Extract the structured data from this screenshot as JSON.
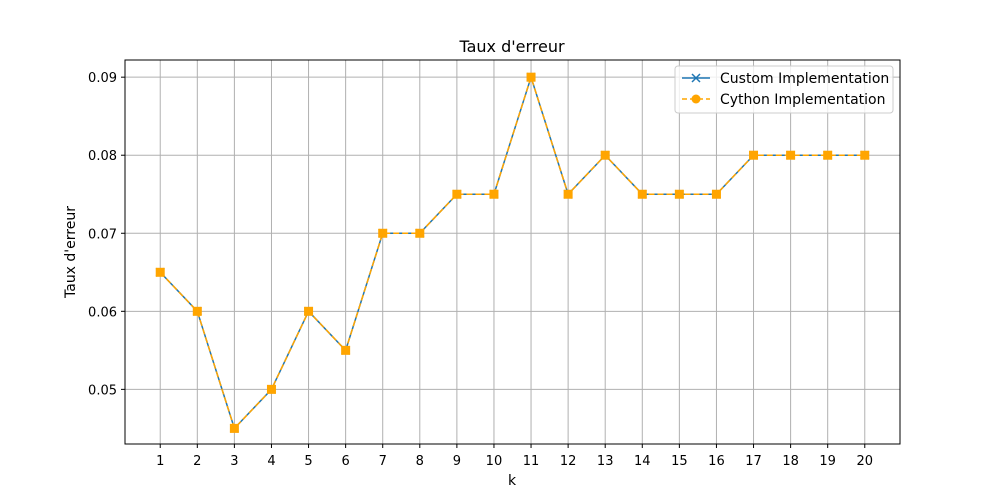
{
  "chart_data": {
    "type": "line",
    "title": "Taux d'erreur",
    "xlabel": "k",
    "ylabel": "Taux d'erreur",
    "x": [
      1,
      2,
      3,
      4,
      5,
      6,
      7,
      8,
      9,
      10,
      11,
      12,
      13,
      14,
      15,
      16,
      17,
      18,
      19,
      20
    ],
    "xlim": [
      0.05,
      20.95
    ],
    "ylim": [
      0.043,
      0.0922
    ],
    "yticks": [
      0.05,
      0.06,
      0.07,
      0.08,
      0.09
    ],
    "ytick_labels": [
      "0.05",
      "0.06",
      "0.07",
      "0.08",
      "0.09"
    ],
    "xtick_labels": [
      "1",
      "2",
      "3",
      "4",
      "5",
      "6",
      "7",
      "8",
      "9",
      "10",
      "11",
      "12",
      "13",
      "14",
      "15",
      "16",
      "17",
      "18",
      "19",
      "20"
    ],
    "grid": true,
    "legend_position": "top-right",
    "series": [
      {
        "name": "Custom Implementation",
        "color": "#1f77b4",
        "marker": "x",
        "linestyle": "solid",
        "values": [
          0.065,
          0.06,
          0.045,
          0.05,
          0.06,
          0.055,
          0.07,
          0.07,
          0.075,
          0.075,
          0.09,
          0.075,
          0.08,
          0.075,
          0.075,
          0.075,
          0.08,
          0.08,
          0.08,
          0.08
        ]
      },
      {
        "name": "Cython Implementation",
        "color": "#ffa500",
        "marker": "o",
        "linestyle": "dashed",
        "values": [
          0.065,
          0.06,
          0.045,
          0.05,
          0.06,
          0.055,
          0.07,
          0.07,
          0.075,
          0.075,
          0.09,
          0.075,
          0.08,
          0.075,
          0.075,
          0.075,
          0.08,
          0.08,
          0.08,
          0.08
        ]
      }
    ]
  }
}
